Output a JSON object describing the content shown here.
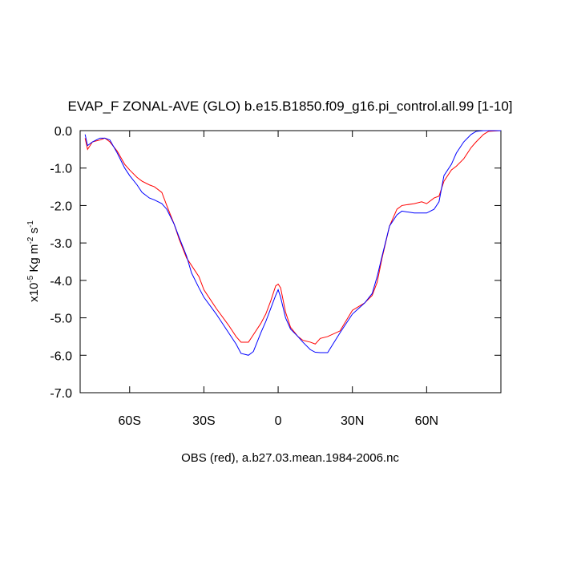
{
  "chart_data": {
    "type": "line",
    "title": "EVAP_F ZONAL-AVE (GLO) b.e15.B1850.f09_g16.pi_control.all.99 [1-10]",
    "x_label": "OBS (red), a.b27.03.mean.1984-2006.nc",
    "y_label_parts": [
      "x10",
      "-5",
      " Kg m",
      "-2",
      " s",
      "-1"
    ],
    "x": [
      -78,
      -77,
      -75,
      -72,
      -70,
      -68,
      -65,
      -62,
      -60,
      -57,
      -55,
      -52,
      -50,
      -47,
      -45,
      -42,
      -40,
      -37,
      -35,
      -32,
      -30,
      -25,
      -20,
      -17,
      -15,
      -12,
      -10,
      -7,
      -5,
      -3,
      -1,
      0,
      1,
      3,
      5,
      8,
      10,
      13,
      15,
      17,
      20,
      25,
      30,
      35,
      38,
      40,
      42,
      45,
      48,
      50,
      55,
      58,
      60,
      63,
      65,
      67,
      70,
      72,
      75,
      78,
      80,
      83,
      85,
      90
    ],
    "series": [
      {
        "color": "#ff0000",
        "values": [
          -0.2,
          -0.5,
          -0.3,
          -0.25,
          -0.2,
          -0.3,
          -0.55,
          -0.9,
          -1.05,
          -1.25,
          -1.35,
          -1.45,
          -1.5,
          -1.65,
          -2.0,
          -2.5,
          -2.9,
          -3.4,
          -3.6,
          -3.9,
          -4.25,
          -4.75,
          -5.2,
          -5.5,
          -5.65,
          -5.65,
          -5.45,
          -5.15,
          -4.9,
          -4.55,
          -4.15,
          -4.1,
          -4.2,
          -4.85,
          -5.25,
          -5.5,
          -5.6,
          -5.65,
          -5.7,
          -5.55,
          -5.5,
          -5.35,
          -4.8,
          -4.6,
          -4.4,
          -4.05,
          -3.4,
          -2.55,
          -2.1,
          -2.0,
          -1.95,
          -1.9,
          -1.95,
          -1.8,
          -1.75,
          -1.35,
          -1.05,
          -0.95,
          -0.75,
          -0.45,
          -0.3,
          -0.1,
          -0.02,
          0
        ]
      },
      {
        "color": "#0000ff",
        "values": [
          -0.1,
          -0.4,
          -0.3,
          -0.2,
          -0.2,
          -0.25,
          -0.6,
          -1.0,
          -1.2,
          -1.45,
          -1.65,
          -1.8,
          -1.85,
          -1.95,
          -2.1,
          -2.5,
          -2.85,
          -3.35,
          -3.8,
          -4.2,
          -4.45,
          -4.9,
          -5.4,
          -5.7,
          -5.95,
          -6.0,
          -5.9,
          -5.4,
          -5.1,
          -4.75,
          -4.4,
          -4.25,
          -4.45,
          -5.0,
          -5.3,
          -5.5,
          -5.65,
          -5.85,
          -5.92,
          -5.93,
          -5.93,
          -5.4,
          -4.9,
          -4.6,
          -4.35,
          -3.9,
          -3.35,
          -2.55,
          -2.25,
          -2.15,
          -2.2,
          -2.2,
          -2.2,
          -2.1,
          -1.9,
          -1.2,
          -0.9,
          -0.6,
          -0.3,
          -0.1,
          -0.02,
          0,
          0,
          0
        ]
      }
    ],
    "xlim": [
      -80,
      90
    ],
    "xticks": [
      {
        "value": -60,
        "label": "60S"
      },
      {
        "value": -30,
        "label": "30S"
      },
      0,
      {
        "value": 30,
        "label": "30N"
      },
      {
        "value": 60,
        "label": "60N"
      }
    ],
    "ylim": [
      -7,
      0
    ],
    "yticks": [
      {
        "value": 0,
        "label": "0.0"
      },
      {
        "value": -1,
        "label": "-1.0"
      },
      {
        "value": -2,
        "label": "-2.0"
      },
      {
        "value": -3,
        "label": "-3.0"
      },
      {
        "value": -4,
        "label": "-4.0"
      },
      {
        "value": -5,
        "label": "-5.0"
      },
      {
        "value": -6,
        "label": "-6.0"
      },
      {
        "value": -7,
        "label": "-7.0"
      }
    ],
    "grid": false
  }
}
